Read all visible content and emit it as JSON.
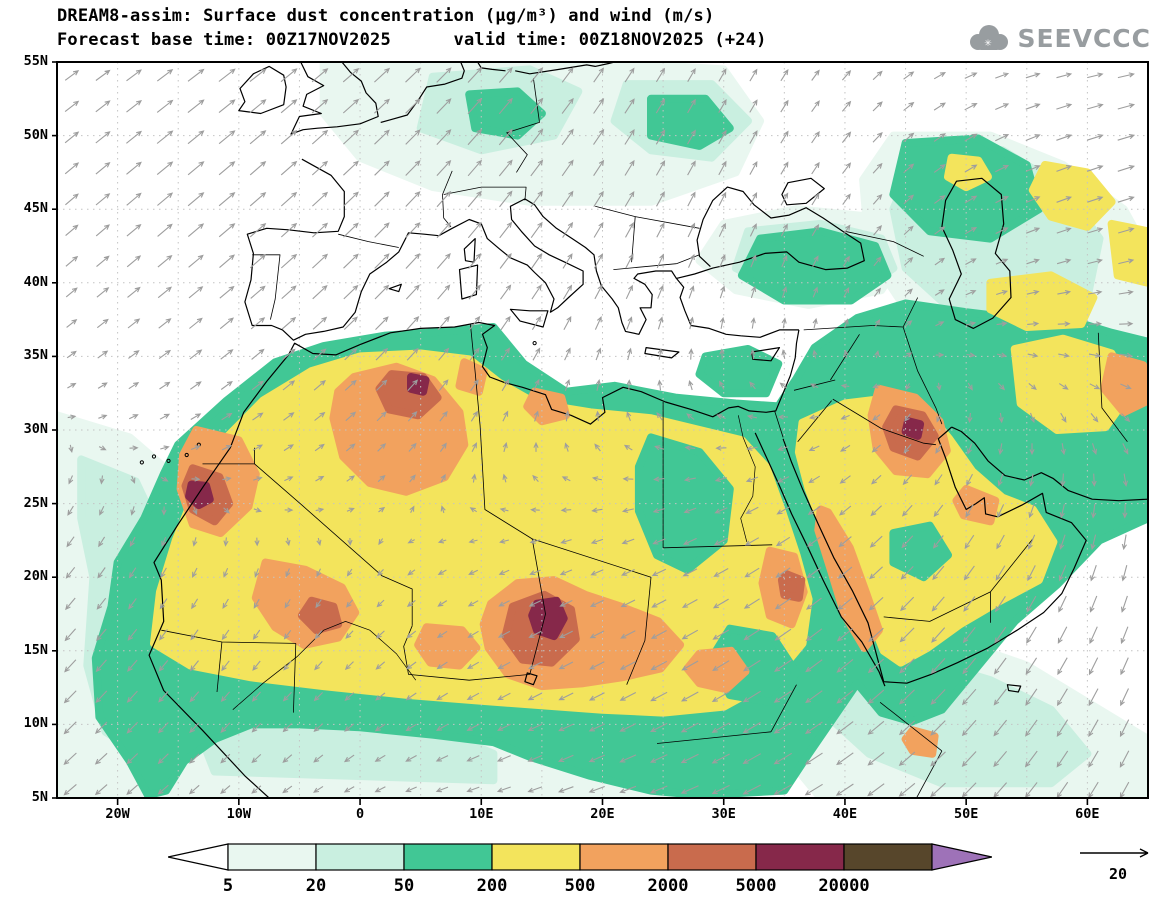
{
  "header": {
    "title": "DREAM8-assim: Surface dust concentration (μg/m³) and wind (m/s)",
    "subtitle": "Forecast base time: 00Z17NOV2025      valid time: 00Z18NOV2025 (+24)",
    "logo_text": "SEEVCCC"
  },
  "axes": {
    "lat_labels": [
      "55N",
      "50N",
      "45N",
      "40N",
      "35N",
      "30N",
      "25N",
      "20N",
      "15N",
      "10N",
      "5N"
    ],
    "lat_values": [
      55,
      50,
      45,
      40,
      35,
      30,
      25,
      20,
      15,
      10,
      5
    ],
    "lon_labels": [
      "20W",
      "10W",
      "0",
      "10E",
      "20E",
      "30E",
      "40E",
      "50E",
      "60E"
    ],
    "lon_values": [
      -20,
      -10,
      0,
      10,
      20,
      30,
      40,
      50,
      60
    ],
    "lon_range": [
      -25,
      65
    ],
    "lat_range": [
      5,
      55
    ]
  },
  "legend": {
    "boundary_labels": [
      "5",
      "20",
      "50",
      "200",
      "500",
      "2000",
      "5000",
      "20000"
    ],
    "colors": {
      "below_min": "#ffffff",
      "level_5": "#e9f7f0",
      "level_20": "#c9efe0",
      "level_50": "#41c795",
      "level_200": "#f3e45c",
      "level_500": "#f2a25e",
      "level_2000": "#c96b4d",
      "level_5000": "#86284a",
      "level_20000": "#57462b",
      "above_max": "#9e72b8"
    }
  },
  "wind": {
    "reference_label": "20",
    "arrow_color": "#9e9e9e"
  },
  "map_colors": {
    "coast": "#000000",
    "grid": "#c4c4c4",
    "sea": "#ffffff"
  }
}
